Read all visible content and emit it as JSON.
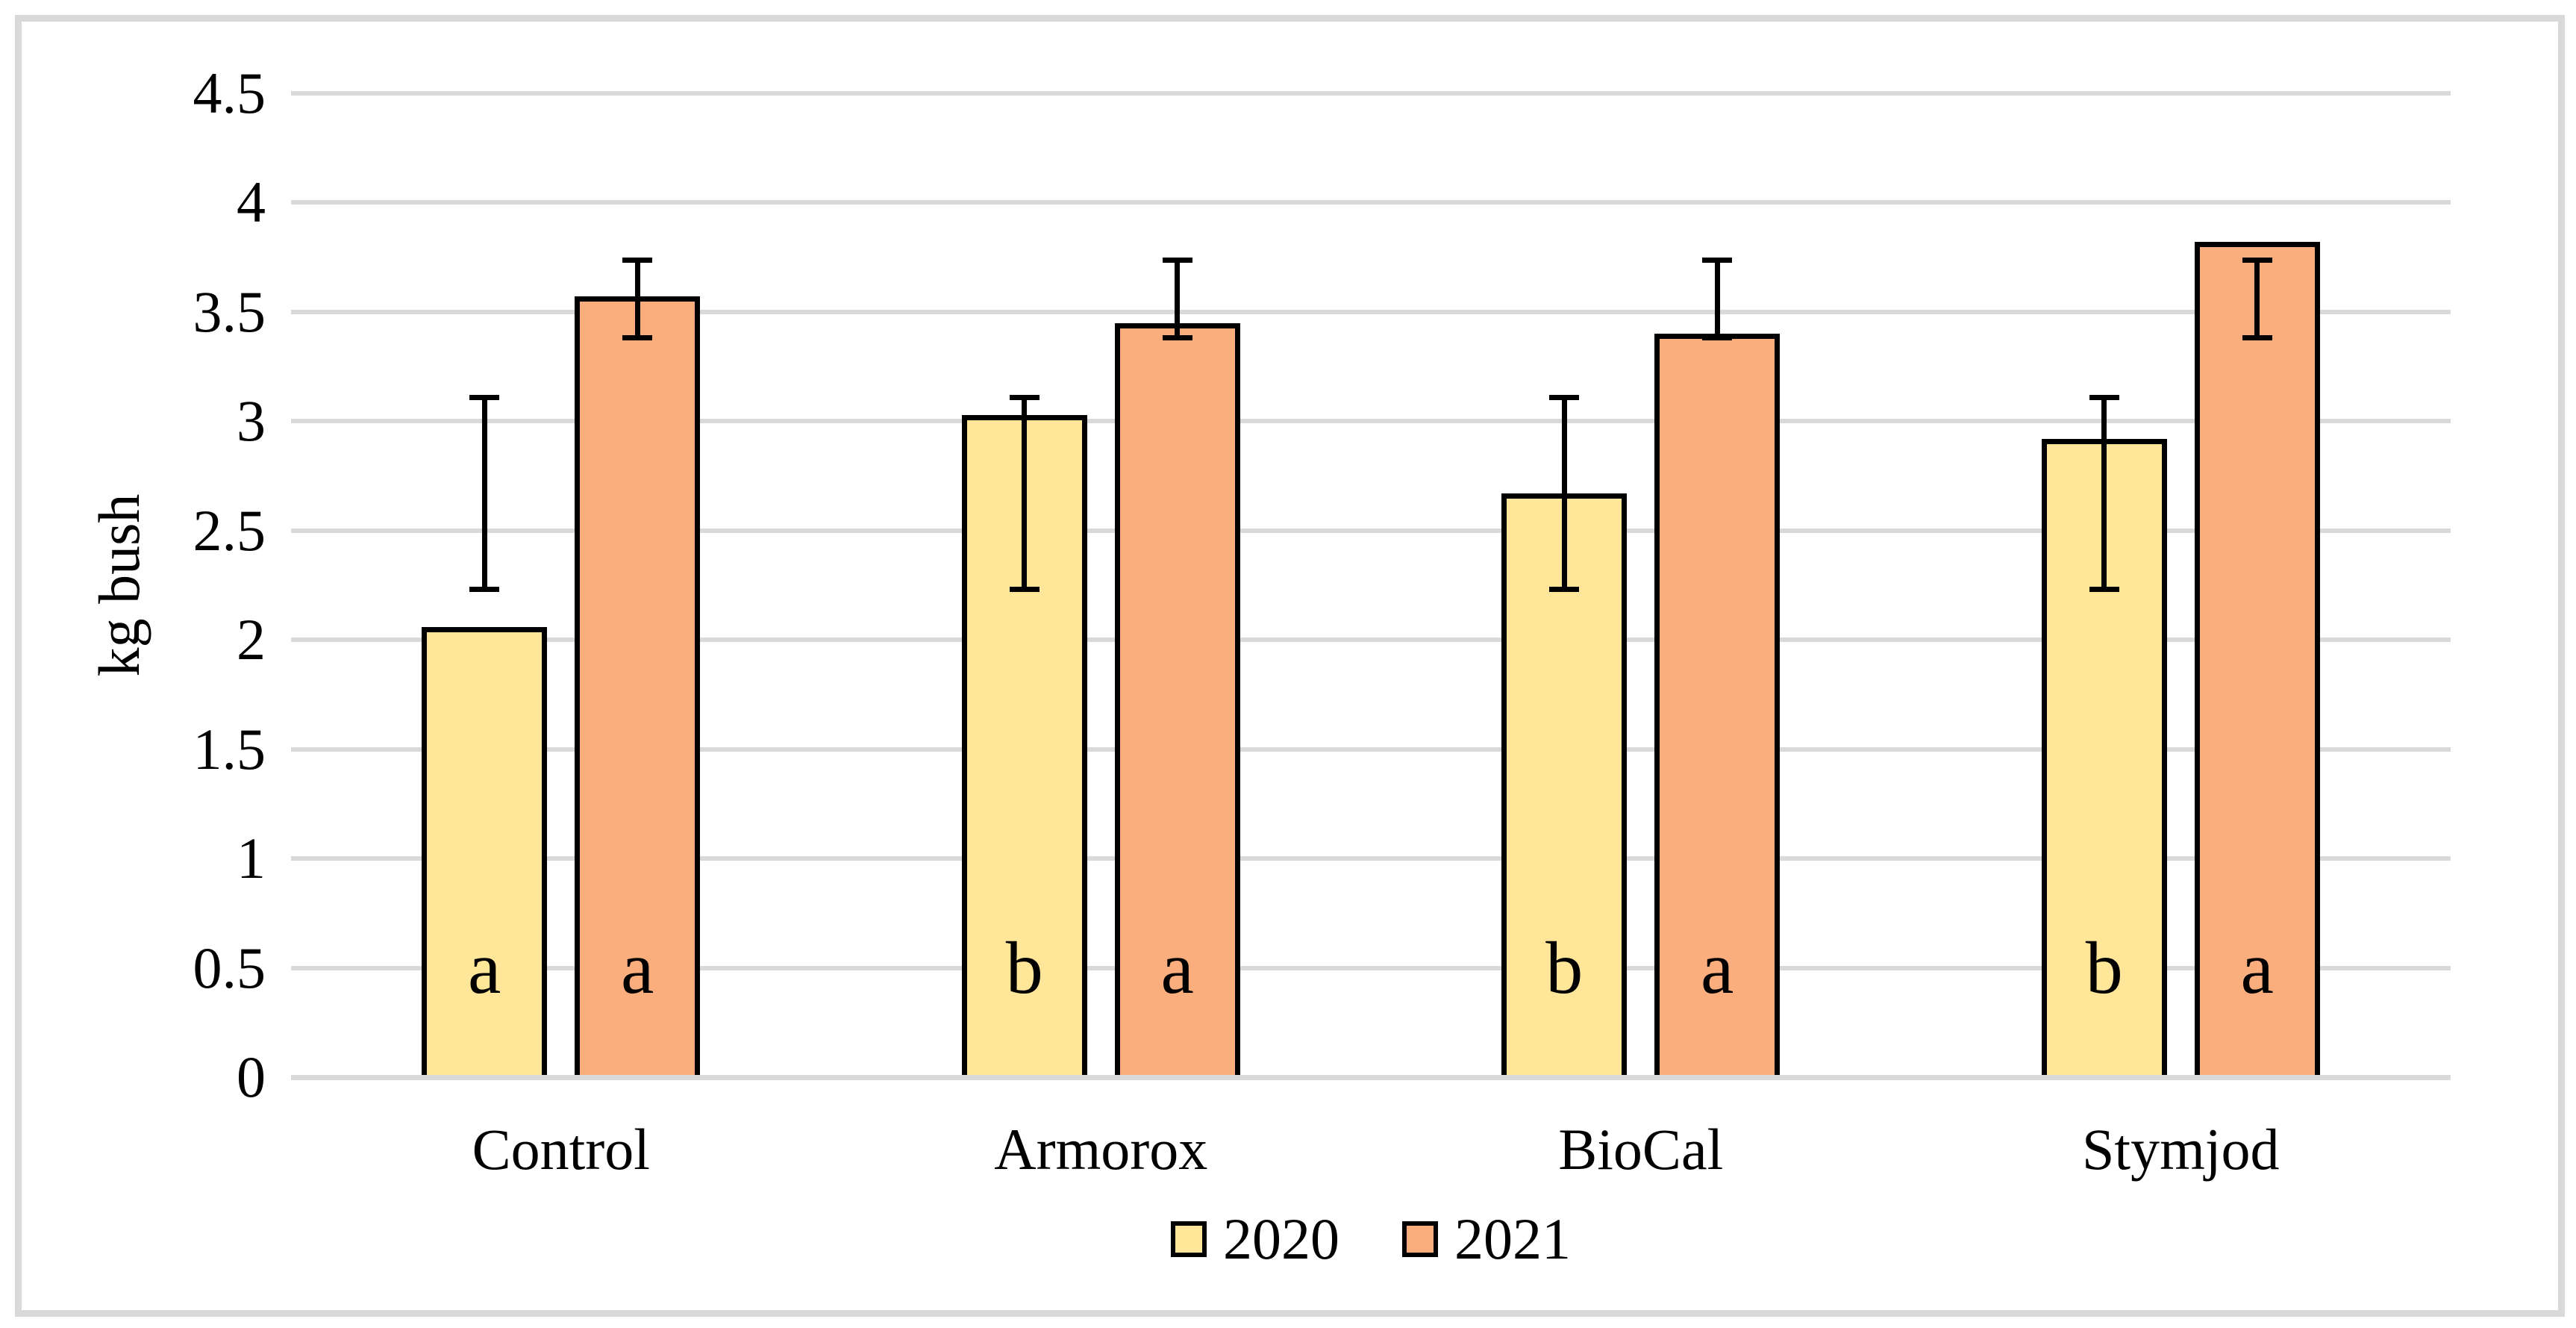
{
  "figure": {
    "background_color": "#FFFFFF",
    "frame_border_color": "#D9D9D9"
  },
  "chart_data": {
    "type": "bar",
    "title": "",
    "categories": [
      "Control",
      "Armorox",
      "BioCal",
      "Stymjod"
    ],
    "series": [
      {
        "name": "2020",
        "color": "#FFE699",
        "values": [
          2.06,
          3.03,
          2.67,
          2.92
        ],
        "error_low": [
          2.23,
          2.23,
          2.23,
          2.23
        ],
        "error_high": [
          3.11,
          3.11,
          3.11,
          3.11
        ],
        "letters": [
          "a",
          "b",
          "b",
          "b"
        ]
      },
      {
        "name": "2021",
        "color": "#FBAE7D",
        "values": [
          3.57,
          3.45,
          3.4,
          3.82
        ],
        "error_low": [
          3.38,
          3.38,
          3.38,
          3.38
        ],
        "error_high": [
          3.74,
          3.74,
          3.74,
          3.74
        ],
        "letters": [
          "a",
          "a",
          "a",
          "a"
        ]
      }
    ],
    "xlabel": "",
    "ylabel": "kg bush",
    "ylim": [
      0,
      4.5
    ],
    "ytick_step": 0.5,
    "yticks": [
      "0",
      "0.5",
      "1",
      "1.5",
      "2",
      "2.5",
      "3",
      "3.5",
      "4",
      "4.5"
    ],
    "grid": true,
    "grid_color": "#D9D9D9",
    "bar_border_color": "#000000",
    "error_bar_color": "#000000",
    "significance_letter_position": 0.5,
    "legend_position": "bottom-center",
    "legend_entries": [
      "2020",
      "2021"
    ]
  }
}
